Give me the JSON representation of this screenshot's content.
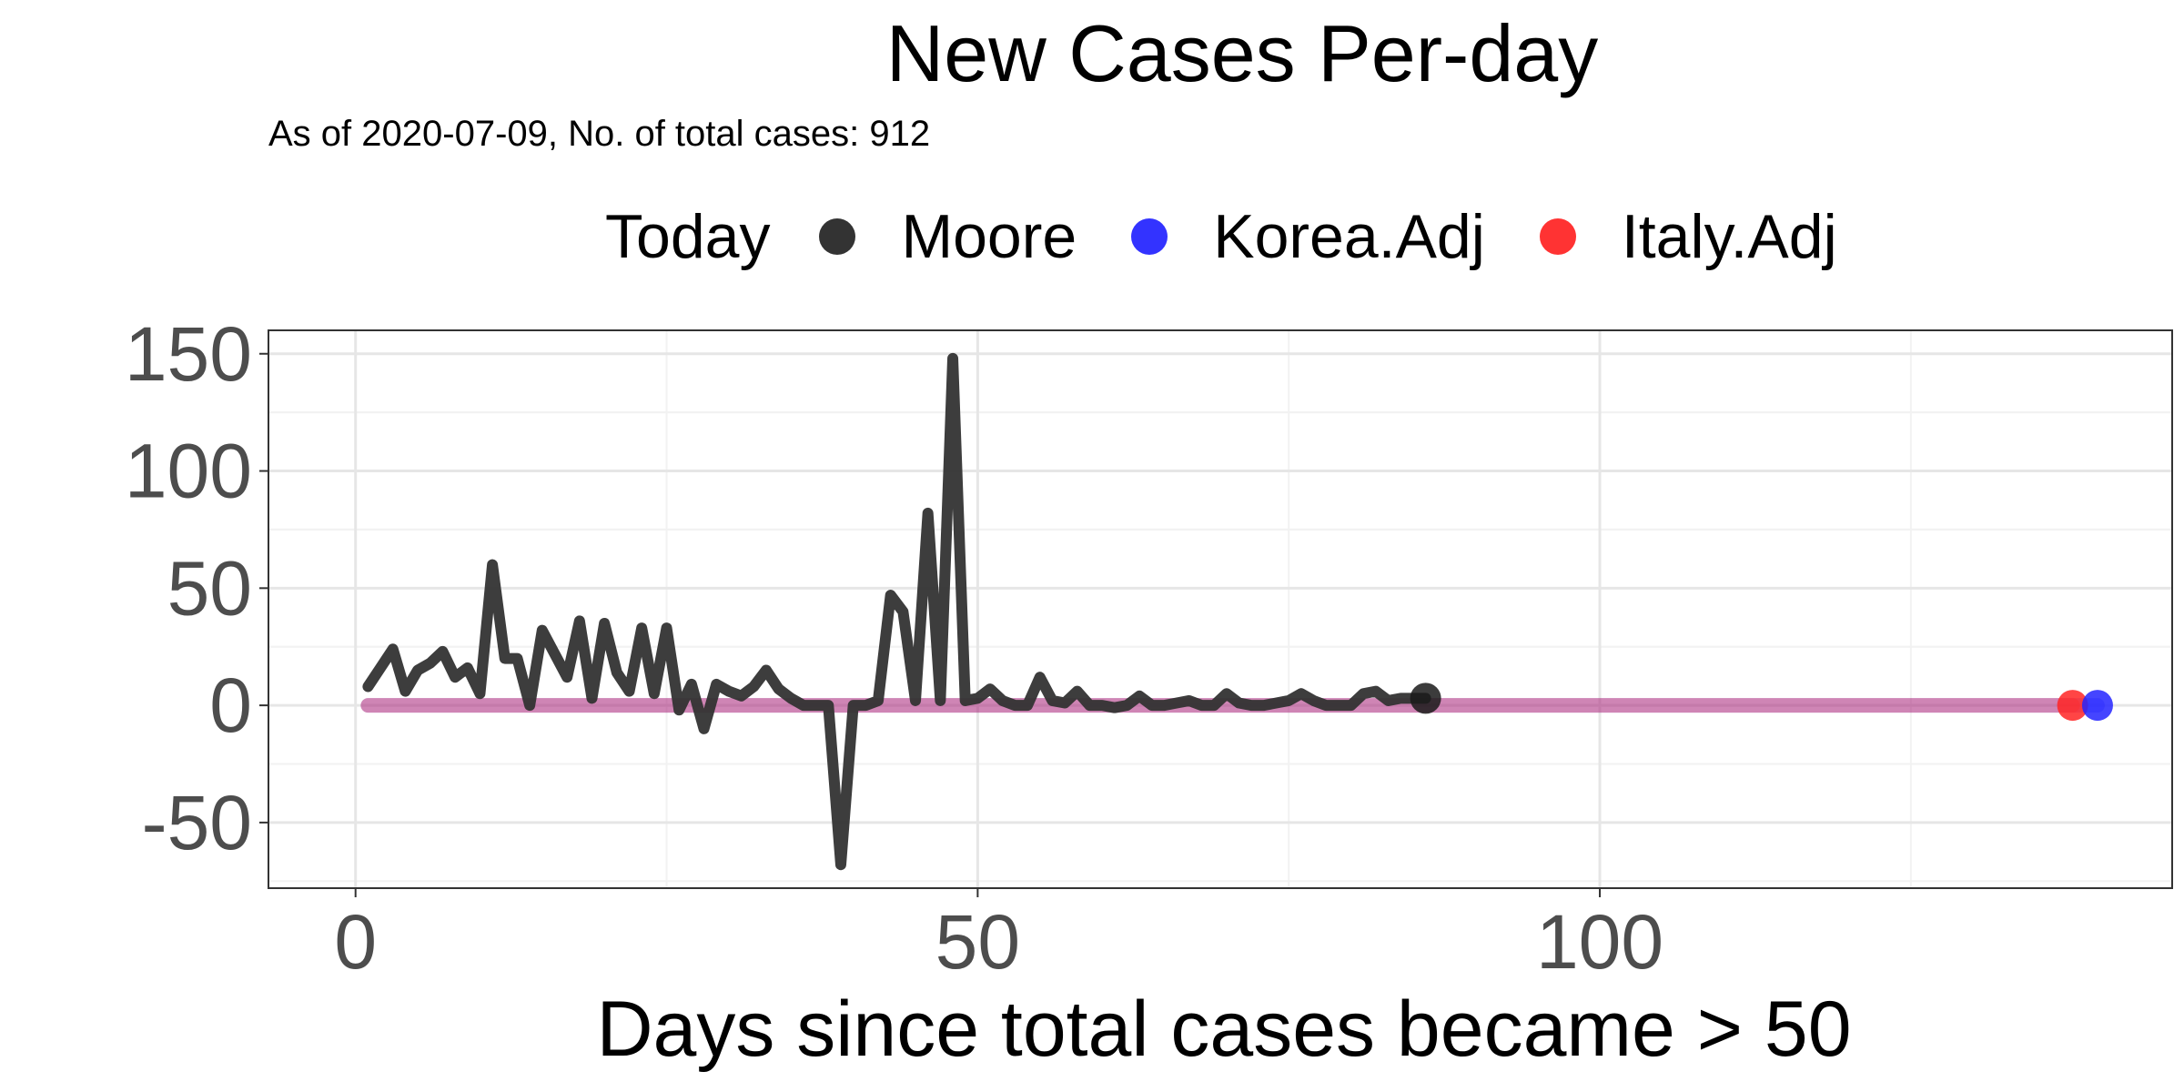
{
  "chart_data": {
    "type": "line",
    "title": "New Cases Per-day",
    "subtitle": "As of 2020-07-09, No. of total cases: 912",
    "xlabel": "Days since total cases became > 50",
    "ylabel": "",
    "xlim": [
      -7,
      146
    ],
    "ylim": [
      -78,
      160
    ],
    "x_ticks": [
      0,
      50,
      100
    ],
    "y_ticks": [
      -50,
      0,
      50,
      100,
      150
    ],
    "grid": true,
    "legend_title": "Today",
    "legend_position": "top",
    "series": [
      {
        "name": "Moore",
        "color": "#333333",
        "x": [
          1,
          2,
          3,
          4,
          5,
          6,
          7,
          8,
          9,
          10,
          11,
          12,
          13,
          14,
          15,
          16,
          17,
          18,
          19,
          20,
          21,
          22,
          23,
          24,
          25,
          26,
          27,
          28,
          29,
          30,
          31,
          32,
          33,
          34,
          35,
          36,
          37,
          38,
          39,
          40,
          41,
          42,
          43,
          44,
          45,
          46,
          47,
          48,
          49,
          50,
          51,
          52,
          53,
          54,
          55,
          56,
          57,
          58,
          59,
          60,
          61,
          62,
          63,
          64,
          65,
          66,
          67,
          68,
          69,
          70,
          71,
          72,
          73,
          74,
          75,
          76,
          77,
          78,
          79,
          80,
          81,
          82,
          83,
          84,
          85,
          86
        ],
        "y": [
          8,
          16,
          24,
          6,
          15,
          18,
          23,
          12,
          16,
          5,
          60,
          20,
          20,
          0,
          32,
          22,
          12,
          36,
          3,
          35,
          14,
          6,
          33,
          5,
          33,
          -2,
          9,
          -10,
          9,
          6,
          4,
          8,
          15,
          7,
          3,
          0,
          0,
          0,
          -68,
          0,
          0,
          2,
          47,
          40,
          2,
          82,
          2,
          148,
          2,
          3,
          7,
          2,
          0,
          0,
          12,
          2,
          1,
          6,
          0,
          0,
          -1,
          0,
          4,
          0,
          0,
          1,
          2,
          0,
          0,
          5,
          1,
          0,
          0,
          1,
          2,
          5,
          2,
          0,
          0,
          0,
          5,
          6,
          2,
          3,
          3,
          3
        ]
      },
      {
        "name": "Korea.Adj",
        "color": "#2b2bff",
        "x": [
          1,
          140
        ],
        "y": [
          0,
          0
        ]
      },
      {
        "name": "Italy.Adj",
        "color": "#ff2b2b",
        "x": [
          1,
          138
        ],
        "y": [
          0,
          0
        ]
      }
    ],
    "today_points": [
      {
        "name": "Moore",
        "x": 86,
        "y": 3
      },
      {
        "name": "Korea.Adj",
        "x": 140,
        "y": 0
      },
      {
        "name": "Italy.Adj",
        "x": 138,
        "y": 0
      }
    ]
  }
}
